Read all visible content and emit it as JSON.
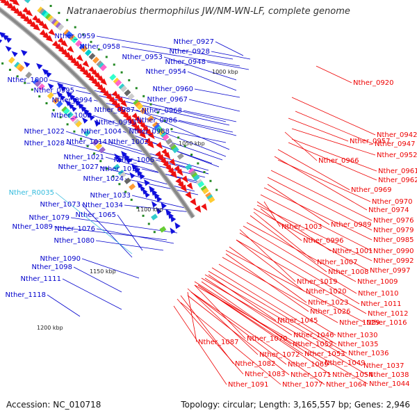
{
  "title": "Natranaerobius thermophilus JW/NM-WN-LF, complete genome",
  "footer": {
    "accession": "Accession: NC_010718",
    "summary": "Topology: circular; Length: 3,165,557 bp; Genes: 2,946"
  },
  "colors": {
    "left_labels": "#0000cc",
    "rna_label": "#33bbdd",
    "right_labels": "#ee0000",
    "ring": "#888888",
    "forward_arrows": "#1010dd",
    "reverse_arrows": "#ee1111",
    "marker": "#228822"
  },
  "kbp_markers": [
    "1000 kbp",
    "1050 kbp",
    "1100 kbp",
    "1150 kbp",
    "1200 kbp"
  ],
  "left_labels": [
    "Nther_0959",
    "Nther_0958",
    "Nther_0927",
    "Nther_0928",
    "Nther_0953",
    "Nther_0948",
    "Nther_0954",
    "Nther_1000",
    "Nther_0995",
    "Nther_0960",
    "Nther_0994",
    "Nther_0967",
    "Nther_0987",
    "Nther_0968",
    "Nther_1005",
    "Nther_0993",
    "Nther_0986",
    "Nther_1004",
    "Nther_0988",
    "Nther_1022",
    "Nther_1028",
    "Nther_1014",
    "Nther_1002",
    "Nther_1021",
    "Nther_1006",
    "Nther_1027",
    "Nther_1015",
    "Nther_1024",
    "Nther_1033",
    "Nther_1073",
    "Nther_1034",
    "Nther_1065",
    "Nther_1079",
    "Nther_1089",
    "Nther_1076",
    "Nther_1080",
    "Nther_1090",
    "Nther_1098",
    "Nther_1111",
    "Nther_1118"
  ],
  "rna_labels": [
    "Nther_R0035"
  ],
  "right_labels": [
    "Nther_0920",
    "Nther_0942",
    "Nther_0957",
    "Nther_0947",
    "Nther_0952",
    "Nther_0966",
    "Nther_0961",
    "Nther_0962",
    "Nther_0969",
    "Nther_0970",
    "Nther_0974",
    "Nther_0976",
    "Nther_1003",
    "Nther_0989",
    "Nther_0979",
    "Nther_0996",
    "Nther_0985",
    "Nther_1001",
    "Nther_0990",
    "Nther_1007",
    "Nther_0992",
    "Nther_1008",
    "Nther_0997",
    "Nther_1019",
    "Nther_1009",
    "Nther_1020",
    "Nther_1010",
    "Nther_1023",
    "Nther_1011",
    "Nther_1026",
    "Nther_1012",
    "Nther_1045",
    "Nther_1029",
    "Nther_1016",
    "Nther_1046",
    "Nther_1030",
    "Nther_1070",
    "Nther_1052",
    "Nther_1035",
    "Nther_1087",
    "Nther_1053",
    "Nther_1036",
    "Nther_1072",
    "Nther_1049",
    "Nther_1082",
    "Nther_1069",
    "Nther_1037",
    "Nther_1083",
    "Nther_1071",
    "Nther_1054",
    "Nther_1038",
    "Nther_1091",
    "Nther_1077",
    "Nther_1064",
    "Nther_1044"
  ]
}
